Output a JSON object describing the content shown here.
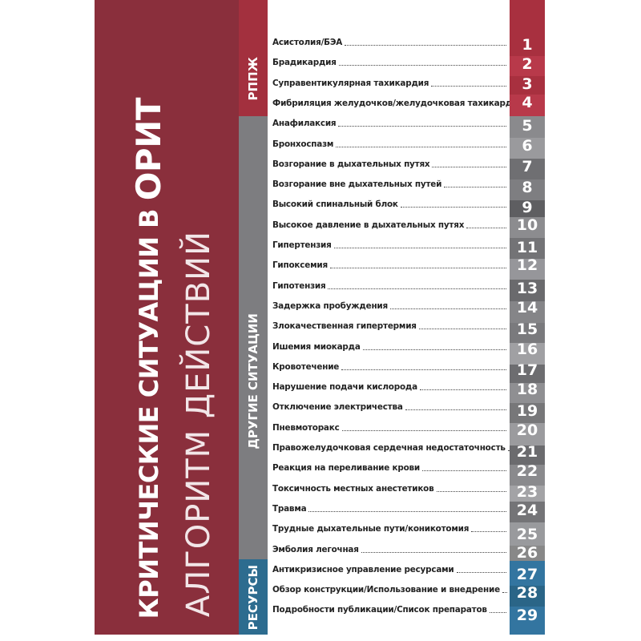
{
  "cover": {
    "title_line1": "КРИТИЧЕСКИЕ СИТУАЦИИ В",
    "title_line1_emph": "ОРИТ",
    "title_line2": "АЛГОРИТМ ДЕЙСТВИЙ",
    "background_color": "#8a2f3c"
  },
  "sections": [
    {
      "label": "РППЖ",
      "color": "#a3303e"
    },
    {
      "label": "ДРУГИЕ СИТУАЦИИ",
      "color": "#7d7d80"
    },
    {
      "label": "РЕСУРСЫ",
      "color": "#2d6c8f"
    }
  ],
  "contents": [
    {
      "label": "Асистолия/БЭА",
      "page": "1",
      "section": 0
    },
    {
      "label": "Брадикардия",
      "page": "2",
      "section": 0
    },
    {
      "label": "Суправентикулярная тахикардия",
      "page": "3",
      "section": 0
    },
    {
      "label": "Фибриляция желудочков/желудочковая тахикардия",
      "page": "4",
      "section": 0
    },
    {
      "label": "Анафилаксия",
      "page": "5",
      "section": 1
    },
    {
      "label": "Бронхоспазм",
      "page": "6",
      "section": 1
    },
    {
      "label": "Возгорание в дыхательных путях",
      "page": "7",
      "section": 1
    },
    {
      "label": "Возгорание вне дыхательных путей",
      "page": "8",
      "section": 1
    },
    {
      "label": "Высокий спинальный блок",
      "page": "9",
      "section": 1
    },
    {
      "label": "Высокое давление в дыхательных путях",
      "page": "10",
      "section": 1
    },
    {
      "label": "Гипертензия",
      "page": "11",
      "section": 1
    },
    {
      "label": "Гипоксемия",
      "page": "12",
      "section": 1
    },
    {
      "label": "Гипотензия",
      "page": "13",
      "section": 1
    },
    {
      "label": "Задержка пробуждения",
      "page": "14",
      "section": 1
    },
    {
      "label": "Злокачественная гипертермия",
      "page": "15",
      "section": 1
    },
    {
      "label": "Ишемия миокарда",
      "page": "16",
      "section": 1
    },
    {
      "label": "Кровотечение",
      "page": "17",
      "section": 1
    },
    {
      "label": "Нарушение подачи кислорода",
      "page": "18",
      "section": 1
    },
    {
      "label": "Отключение электричества",
      "page": "19",
      "section": 1
    },
    {
      "label": "Пневмоторакс",
      "page": "20",
      "section": 1
    },
    {
      "label": "Правожелудочковая сердечная недостаточность",
      "page": "21",
      "section": 1
    },
    {
      "label": "Реакция на переливание крови",
      "page": "22",
      "section": 1
    },
    {
      "label": "Токсичность местных анестетиков",
      "page": "23",
      "section": 1
    },
    {
      "label": "Травма",
      "page": "24",
      "section": 1
    },
    {
      "label": "Трудные дыхательные пути/коникотомия",
      "page": "25",
      "section": 1
    },
    {
      "label": "Эмболия легочная",
      "page": "26",
      "section": 1
    },
    {
      "label": "Антикризисное управление ресурсами",
      "page": "27",
      "section": 2
    },
    {
      "label": "Обзор конструкции/Использование и внедрение",
      "page": "28",
      "section": 2
    },
    {
      "label": "Подробности публикации/Список препаратов",
      "page": "29",
      "section": 2
    }
  ]
}
